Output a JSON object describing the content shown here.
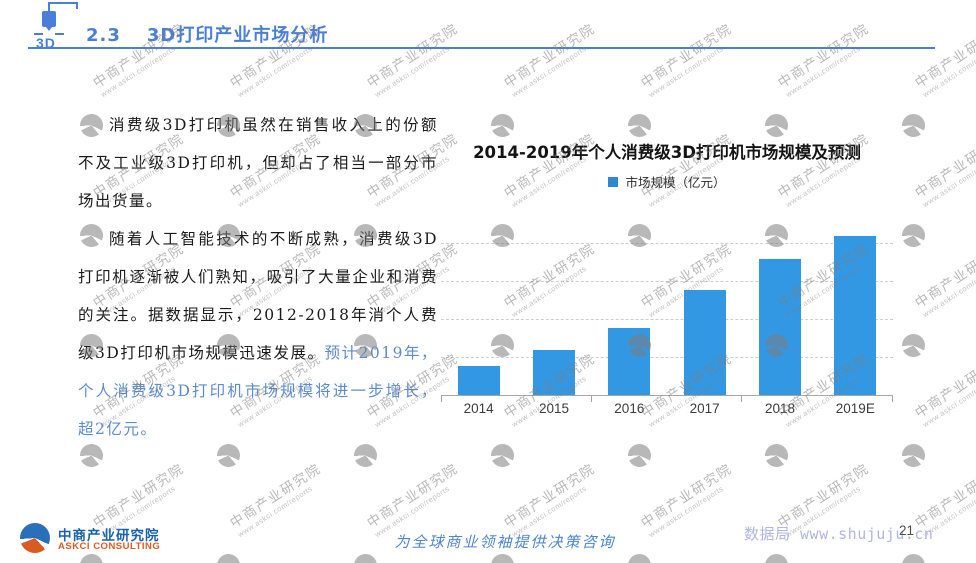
{
  "header": {
    "section_number": "2.3",
    "title": "3D打印产业市场分析",
    "icon_label": "3D"
  },
  "paragraphs": {
    "p1": "消费级3D打印机虽然在销售收入上的份额不及工业级3D打印机，但却占了相当一部分市场出货量。",
    "p2_black": "随着人工智能技术的不断成熟，消费级3D打印机逐渐被人们熟知，吸引了大量企业和消费的关注。据数据显示，2012-2018年消个人费级3D打印机市场规模迅速发展。",
    "p2_blue": "预计2019年，个人消费级3D打印机市场规模将进一步增长，超2亿元。"
  },
  "chart_data": {
    "type": "bar",
    "title": "2014-2019年个人消费级3D打印机市场规模及预测",
    "legend": "市场规模（亿元）",
    "legend_position": "top",
    "categories": [
      "2014",
      "2015",
      "2016",
      "2017",
      "2018",
      "2019E"
    ],
    "values": [
      0.4,
      0.6,
      0.9,
      1.4,
      1.8,
      2.1
    ],
    "unit": "亿元",
    "ylim": [
      0,
      2.2
    ],
    "gridline_values": [
      0.5,
      1.0,
      1.5,
      2.0
    ],
    "grid": "horizontal-dashed",
    "y_axis_labels_visible": false,
    "bar_color": "#3398e3"
  },
  "watermark": {
    "line1": "中商产业研究院",
    "line2": "www.askci.com/reports"
  },
  "footer": {
    "logo_cn": "中商产业研究院",
    "logo_en": "ASKCI CONSULTING",
    "slogan": "为全球商业领袖提供决策咨询",
    "data_link": "数据局 www.shujuju.cn",
    "page_number": "21"
  },
  "colors": {
    "accent_blue": "#4a7fd9",
    "bar_blue": "#3398e3",
    "highlight_text_blue": "#5b8bd0",
    "logo_blue": "#1761ad",
    "logo_orange": "#e2591f"
  }
}
